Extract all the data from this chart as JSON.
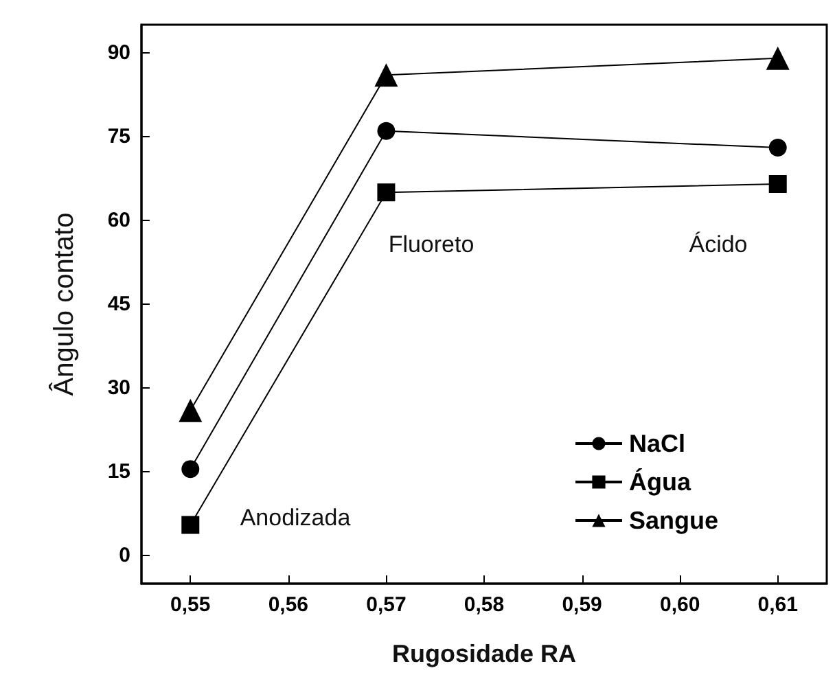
{
  "chart_data": {
    "type": "line",
    "xlabel": "Rugosidade RA",
    "ylabel": "Ângulo contato",
    "x": [
      0.55,
      0.57,
      0.61
    ],
    "series": [
      {
        "name": "NaCl",
        "color": "#000000",
        "marker": "circle",
        "values": [
          15.5,
          76,
          73
        ]
      },
      {
        "name": "Água",
        "color": "#000000",
        "marker": "square",
        "values": [
          5.5,
          65,
          66.5
        ]
      },
      {
        "name": "Sangue",
        "color": "#000000",
        "marker": "triangle",
        "values": [
          26,
          86,
          89
        ]
      }
    ],
    "xlim": [
      0.545,
      0.615
    ],
    "xticks": [
      {
        "value": 0.55,
        "label": "0,55"
      },
      {
        "value": 0.56,
        "label": "0,56"
      },
      {
        "value": 0.57,
        "label": "0,57"
      },
      {
        "value": 0.58,
        "label": "0,58"
      },
      {
        "value": 0.59,
        "label": "0,59"
      },
      {
        "value": 0.6,
        "label": "0,60"
      },
      {
        "value": 0.61,
        "label": "0,61"
      }
    ],
    "ylim": [
      -5,
      95
    ],
    "yticks": [
      0,
      15,
      30,
      45,
      60,
      75,
      90
    ],
    "annotations": [
      "Anodizada",
      "Fluoreto",
      "Ácido"
    ],
    "grid": false,
    "legend": "bottom right",
    "line_style": "solid"
  }
}
